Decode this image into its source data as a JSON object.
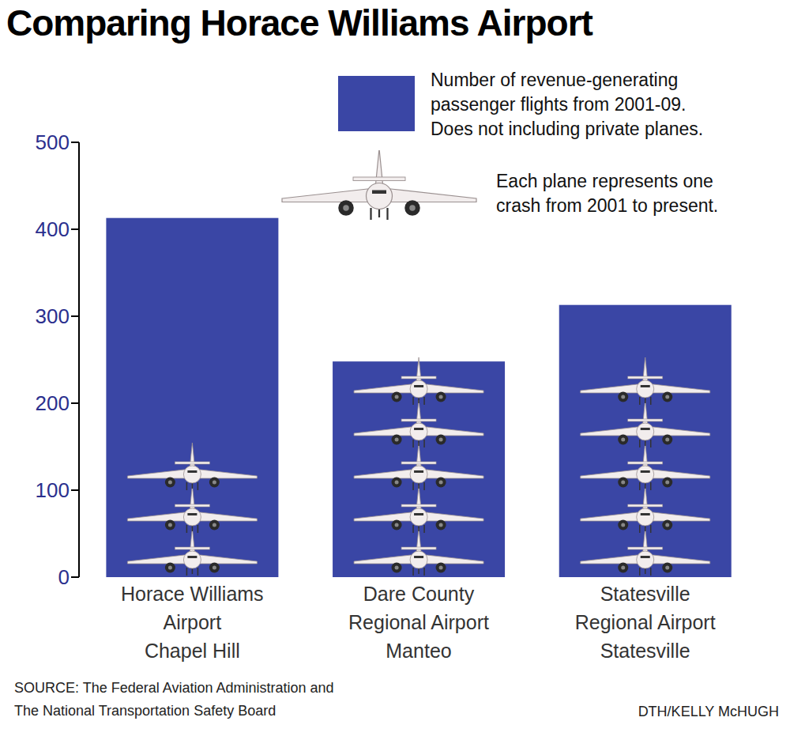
{
  "chart_data": {
    "type": "bar",
    "title": "Comparing Horace Williams Airport",
    "categories": [
      "Horace Williams\nAirport\nChapel Hill",
      "Dare County\nRegional Airport\nManteo",
      "Statesville\nRegional Airport\nStatesville"
    ],
    "series": [
      {
        "name": "Number of revenue-generating\npassenger flights from 2001-09.\nDoes not including private planes.",
        "color": "#3a46a5",
        "values": [
          413,
          248,
          313
        ]
      }
    ],
    "crashes": [
      3,
      5,
      5
    ],
    "crashes_label": "Each plane represents one\ncrash from 2001 to present.",
    "ylim": [
      0,
      500
    ],
    "yticks": [
      0,
      100,
      200,
      300,
      400,
      500
    ],
    "grid": false,
    "source": "SOURCE: The Federal Aviation Administration and\nThe National Transportation Safety Board",
    "credit": "DTH/KELLY McHUGH"
  }
}
